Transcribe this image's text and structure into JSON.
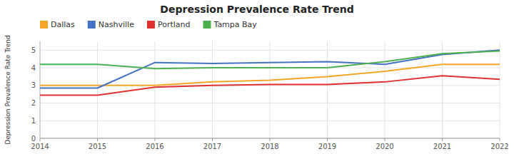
{
  "chart_data": {
    "type": "line",
    "title": "Depression Prevalence Rate Trend",
    "ylabel": "Depression Prevalence Rate Trend",
    "x": [
      2014,
      2015,
      2016,
      2017,
      2018,
      2019,
      2020,
      2021,
      2022
    ],
    "xlim": [
      2014,
      2022
    ],
    "xticks": [
      2014,
      2015,
      2016,
      2017,
      2018,
      2019,
      2020,
      2021,
      2022
    ],
    "ylim": [
      0,
      5.5
    ],
    "yticks": [
      0,
      1,
      2,
      3,
      4,
      5
    ],
    "grid": true,
    "legend": "upper left",
    "series": [
      {
        "name": "Dallas",
        "color": "#F4A628",
        "values": [
          3.0,
          3.0,
          3.0,
          3.2,
          3.3,
          3.5,
          3.8,
          4.2,
          4.2
        ]
      },
      {
        "name": "Nashville",
        "color": "#4472C4",
        "values": [
          2.85,
          2.85,
          4.3,
          4.25,
          4.3,
          4.35,
          4.2,
          4.75,
          5.0
        ]
      },
      {
        "name": "Portland",
        "color": "#E03030",
        "values": [
          2.45,
          2.45,
          2.9,
          3.0,
          3.05,
          3.05,
          3.2,
          3.55,
          3.35
        ]
      },
      {
        "name": "Tampa Bay",
        "color": "#4CAF50",
        "values": [
          4.2,
          4.2,
          3.95,
          4.0,
          4.0,
          4.0,
          4.35,
          4.8,
          4.95
        ]
      }
    ]
  }
}
